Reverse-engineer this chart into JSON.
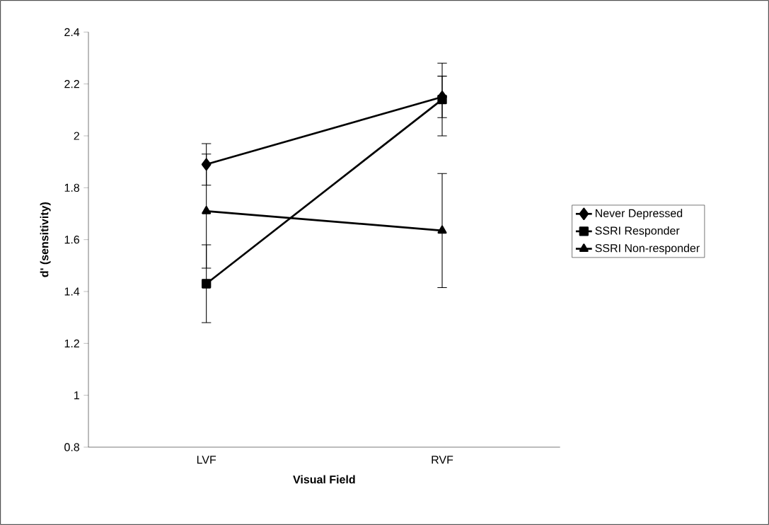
{
  "chart_data": {
    "type": "line",
    "xlabel": "Visual Field",
    "ylabel": "d' (sensitivity)",
    "categories": [
      "LVF",
      "RVF"
    ],
    "series": [
      {
        "name": "Never Depressed",
        "color": "#000000",
        "marker": "diamond",
        "values": [
          1.89,
          2.15
        ],
        "errors": [
          0.08,
          0.08
        ]
      },
      {
        "name": "SSRI Responder",
        "color": "#000000",
        "marker": "square",
        "values": [
          1.43,
          2.14
        ],
        "errors": [
          0.15,
          0.14
        ]
      },
      {
        "name": "SSRI Non-responder",
        "color": "#000000",
        "marker": "triangle",
        "values": [
          1.71,
          1.635
        ],
        "errors": [
          0.22,
          0.22
        ]
      }
    ],
    "ylim": [
      0.8,
      2.4
    ],
    "yticks": [
      0.8,
      1,
      1.2,
      1.4,
      1.6,
      1.8,
      2,
      2.2,
      2.4
    ],
    "grid": false,
    "legend": "right",
    "line_style": "solid"
  }
}
